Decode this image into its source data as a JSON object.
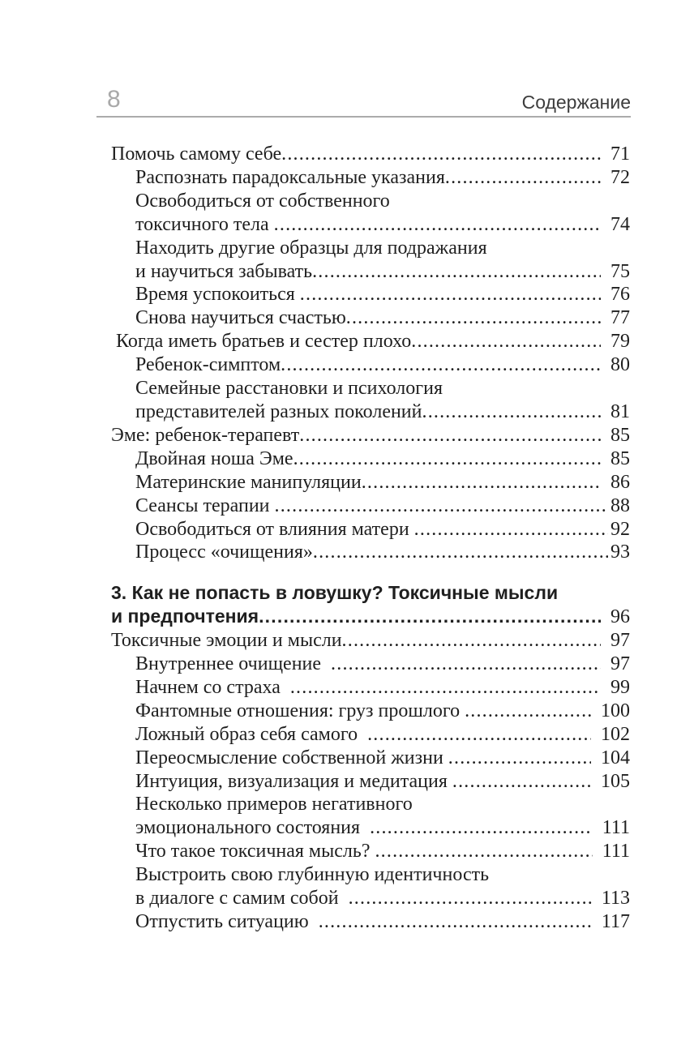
{
  "page": {
    "number": "8",
    "header_title": "Содержание"
  },
  "colors": {
    "background": "#ffffff",
    "text": "#1f1f1f",
    "page_number": "#a9a9a9",
    "header_title": "#3d3d3d",
    "rule": "#ababab"
  },
  "toc": {
    "entries": [
      {
        "text": "Помочь самому себе",
        "page": "71",
        "level": 0
      },
      {
        "text": "Распознать парадоксальные указания",
        "page": "72",
        "level": 1
      },
      {
        "text": "Освободиться от собственного",
        "page": null,
        "level": 1
      },
      {
        "text": "токсичного тела ",
        "page": "74",
        "level": 1
      },
      {
        "text": "Находить другие образцы для подражания",
        "page": null,
        "level": 1
      },
      {
        "text": "и научиться забывать",
        "page": "75",
        "level": 1
      },
      {
        "text": "Время успокоиться ",
        "page": "76",
        "level": 1
      },
      {
        "text": "Снова научиться счастью",
        "page": "77",
        "level": 1
      },
      {
        "text": " Когда иметь братьев и сестер плохо",
        "page": "79",
        "level": 0
      },
      {
        "text": "Ребенок-симптом",
        "page": "80",
        "level": 1
      },
      {
        "text": "Семейные расстановки и психология",
        "page": null,
        "level": 1
      },
      {
        "text": "представителей разных поколений",
        "page": "81",
        "level": 1
      },
      {
        "text": "Эме: ребенок-терапевт",
        "page": "85",
        "level": 0
      },
      {
        "text": "Двойная ноша Эме",
        "page": "85",
        "level": 1
      },
      {
        "text": "Материнские манипуляции",
        "page": "86",
        "level": 1
      },
      {
        "text": "Сеансы терапии ",
        "page": "88",
        "level": 1,
        "tight": true
      },
      {
        "text": "Освободиться от влияния матери ",
        "page": "92",
        "level": 1,
        "tight": true
      },
      {
        "text": "Процесс «очищения»",
        "page": "93",
        "level": 1,
        "tight": true
      },
      {
        "text": "3. Как не попасть в ловушку? Токсичные мысли",
        "page": null,
        "level": 0,
        "bold": true,
        "gap_before": true
      },
      {
        "text": "и предпочтения",
        "page": "96",
        "level": 0,
        "bold": true
      },
      {
        "text": "Токсичные эмоции и мысли",
        "page": "97",
        "level": 0
      },
      {
        "text": "Внутреннее очищение  ",
        "page": "97",
        "level": 1
      },
      {
        "text": "Начнем со страха  ",
        "page": "99",
        "level": 1
      },
      {
        "text": "Фантомные отношения: груз прошлого ",
        "page": "100",
        "level": 1
      },
      {
        "text": "Ложный образ себя самого  ",
        "page": "102",
        "level": 1
      },
      {
        "text": "Переосмысление собственной жизни ",
        "page": "104",
        "level": 1
      },
      {
        "text": "Интуиция, визуализация и медитация ",
        "page": "105",
        "level": 1
      },
      {
        "text": "Несколько примеров негативного",
        "page": null,
        "level": 1
      },
      {
        "text": "эмоционального состояния  ",
        "page": "111",
        "level": 1
      },
      {
        "text": "Что такое токсичная мысль? ",
        "page": "111",
        "level": 1
      },
      {
        "text": "Выстроить свою глубинную идентичность",
        "page": null,
        "level": 1
      },
      {
        "text": "в диалоге с самим собой  ",
        "page": "113",
        "level": 1
      },
      {
        "text": "Отпустить ситуацию  ",
        "page": "117",
        "level": 1
      }
    ]
  }
}
